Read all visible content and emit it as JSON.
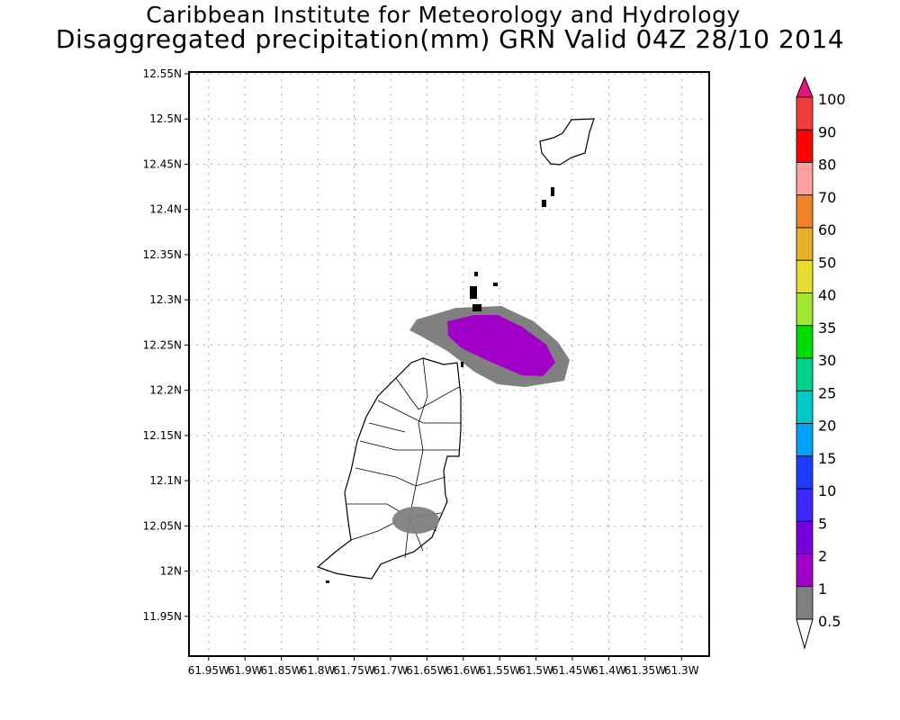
{
  "title_line1": "Caribbean Institute for Meteorology and Hydrology",
  "title_line2": "Disaggregated precipitation(mm) GRN Valid 04Z 28/10 2014",
  "chart_data": {
    "type": "map-contour",
    "xlim": [
      61.977,
      61.262
    ],
    "ylim": [
      11.906,
      12.552
    ],
    "x_ticks": [
      61.95,
      61.9,
      61.85,
      61.8,
      61.75,
      61.7,
      61.65,
      61.6,
      61.55,
      61.5,
      61.45,
      61.4,
      61.35,
      61.3
    ],
    "x_tick_labels": [
      "61.95W",
      "61.9W",
      "61.85W",
      "61.8W",
      "61.75W",
      "61.7W",
      "61.65W",
      "61.6W",
      "61.55W",
      "61.5W",
      "61.45W",
      "61.4W",
      "61.35W",
      "61.3W"
    ],
    "y_ticks": [
      12.55,
      12.5,
      12.45,
      12.4,
      12.35,
      12.3,
      12.25,
      12.2,
      12.15,
      12.1,
      12.05,
      12.0,
      11.95
    ],
    "y_tick_labels": [
      "12.55N",
      "12.5N",
      "12.45N",
      "12.4N",
      "12.35N",
      "12.3N",
      "12.25N",
      "12.2N",
      "12.15N",
      "12.1N",
      "12.05N",
      "12N",
      "11.95N"
    ],
    "grid": true,
    "legend_placement": "right",
    "colorbar": {
      "labels": [
        "100",
        "90",
        "80",
        "70",
        "60",
        "50",
        "40",
        "35",
        "30",
        "25",
        "20",
        "15",
        "10",
        "5",
        "2",
        "1",
        "0.5"
      ],
      "colors": [
        "#f03c3c",
        "#ff0000",
        "#ffa0a0",
        "#f08228",
        "#e6af2d",
        "#e6dc32",
        "#a0e632",
        "#00dc00",
        "#00d28c",
        "#00c8c8",
        "#00a0ff",
        "#1e3cff",
        "#3c28ff",
        "#7800dc",
        "#a000c8",
        "#808080"
      ],
      "top_arrow_color": "#e6137f",
      "bottom_arrow_color": "#ffffff"
    },
    "precip_areas": [
      {
        "name": "north-east cell outer",
        "range_mm": "0.5-1",
        "color": "#808080"
      },
      {
        "name": "north-east cell inner",
        "range_mm": "1-2",
        "color": "#a000c8"
      },
      {
        "name": "south cell",
        "range_mm": "0.5-1",
        "color": "#808080"
      }
    ]
  }
}
